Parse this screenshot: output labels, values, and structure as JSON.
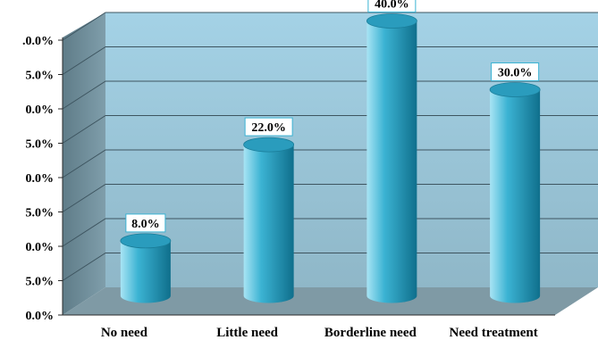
{
  "chart_data": {
    "type": "bar",
    "style": "3d-cylinder-columns",
    "categories": [
      "No need",
      "Little need",
      "Borderline need",
      "Need treatment"
    ],
    "values": [
      8.0,
      22.0,
      40.0,
      30.0
    ],
    "value_labels": [
      "8.0%",
      "22.0%",
      "40.0%",
      "30.0%"
    ],
    "y_tick_labels": [
      ".0.0%",
      "5.0%",
      "0.0%",
      "5.0%",
      "0.0%",
      "5.0%",
      "0.0%",
      "5.0%",
      "0.0%"
    ],
    "ylim": [
      0,
      40
    ],
    "y_step": 5,
    "grid": true,
    "legend": "none",
    "colors": {
      "bar_light": "#a8e4f4",
      "bar_mid": "#3bb3d3",
      "bar_dark": "#0f6f8c",
      "back_wall": "#a6cfe1",
      "side_wall": "#6d8c99",
      "floor": "#7f9aa5",
      "grid": "#3e5560"
    }
  }
}
